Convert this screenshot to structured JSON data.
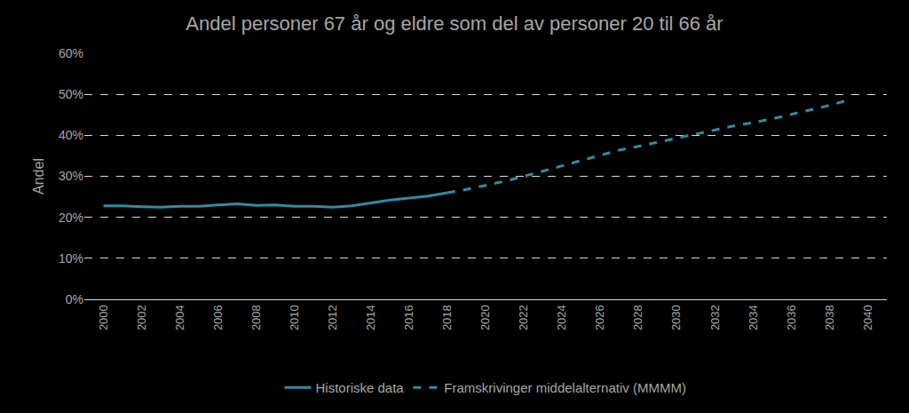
{
  "chart_data": {
    "type": "line",
    "title": "Andel personer 67 år og eldre som del av personer 20 til 66 år",
    "y_label": "Andel",
    "x": [
      2000,
      2001,
      2002,
      2003,
      2004,
      2005,
      2006,
      2007,
      2008,
      2009,
      2010,
      2011,
      2012,
      2013,
      2014,
      2015,
      2016,
      2017,
      2018,
      2019,
      2020,
      2021,
      2022,
      2023,
      2024,
      2025,
      2026,
      2027,
      2028,
      2029,
      2030,
      2031,
      2032,
      2033,
      2034,
      2035,
      2036,
      2037,
      2038,
      2039
    ],
    "series": [
      {
        "name": "Historiske data",
        "color": "#2f8aa5",
        "line_style": "solid",
        "values": [
          22.8,
          22.8,
          22.6,
          22.5,
          22.7,
          22.7,
          23.0,
          23.3,
          22.9,
          23.0,
          22.7,
          22.7,
          22.5,
          22.8,
          23.5,
          24.2,
          24.7,
          25.2,
          26.0,
          null,
          null,
          null,
          null,
          null,
          null,
          null,
          null,
          null,
          null,
          null,
          null,
          null,
          null,
          null,
          null,
          null,
          null,
          null,
          null,
          null
        ]
      },
      {
        "name": "Framskrivinger middelalternativ (MMMM)",
        "color": "#2f8aa5",
        "line_style": "dash",
        "values": [
          null,
          null,
          null,
          null,
          null,
          null,
          null,
          null,
          null,
          null,
          null,
          null,
          null,
          null,
          null,
          null,
          null,
          null,
          26.0,
          26.8,
          27.8,
          28.8,
          30.0,
          31.3,
          32.5,
          33.8,
          35.2,
          36.4,
          37.3,
          38.3,
          39.4,
          40.3,
          41.3,
          42.3,
          43.1,
          44.0,
          45.1,
          46.2,
          47.3,
          48.6
        ]
      }
    ],
    "xlim": [
      1999,
      2041
    ],
    "xticks": [
      2000,
      2002,
      2004,
      2006,
      2008,
      2010,
      2012,
      2014,
      2016,
      2018,
      2020,
      2022,
      2024,
      2026,
      2028,
      2030,
      2032,
      2034,
      2036,
      2038,
      2040
    ],
    "ylim": [
      0,
      60
    ],
    "yticks": [
      {
        "value": 0,
        "label": "0%"
      },
      {
        "value": 10,
        "label": "10%"
      },
      {
        "value": 20,
        "label": "20%"
      },
      {
        "value": 30,
        "label": "30%"
      },
      {
        "value": 40,
        "label": "40%"
      },
      {
        "value": 50,
        "label": "50%"
      },
      {
        "value": 60,
        "label": "60%"
      }
    ],
    "grid": true,
    "legend": "bottom"
  }
}
